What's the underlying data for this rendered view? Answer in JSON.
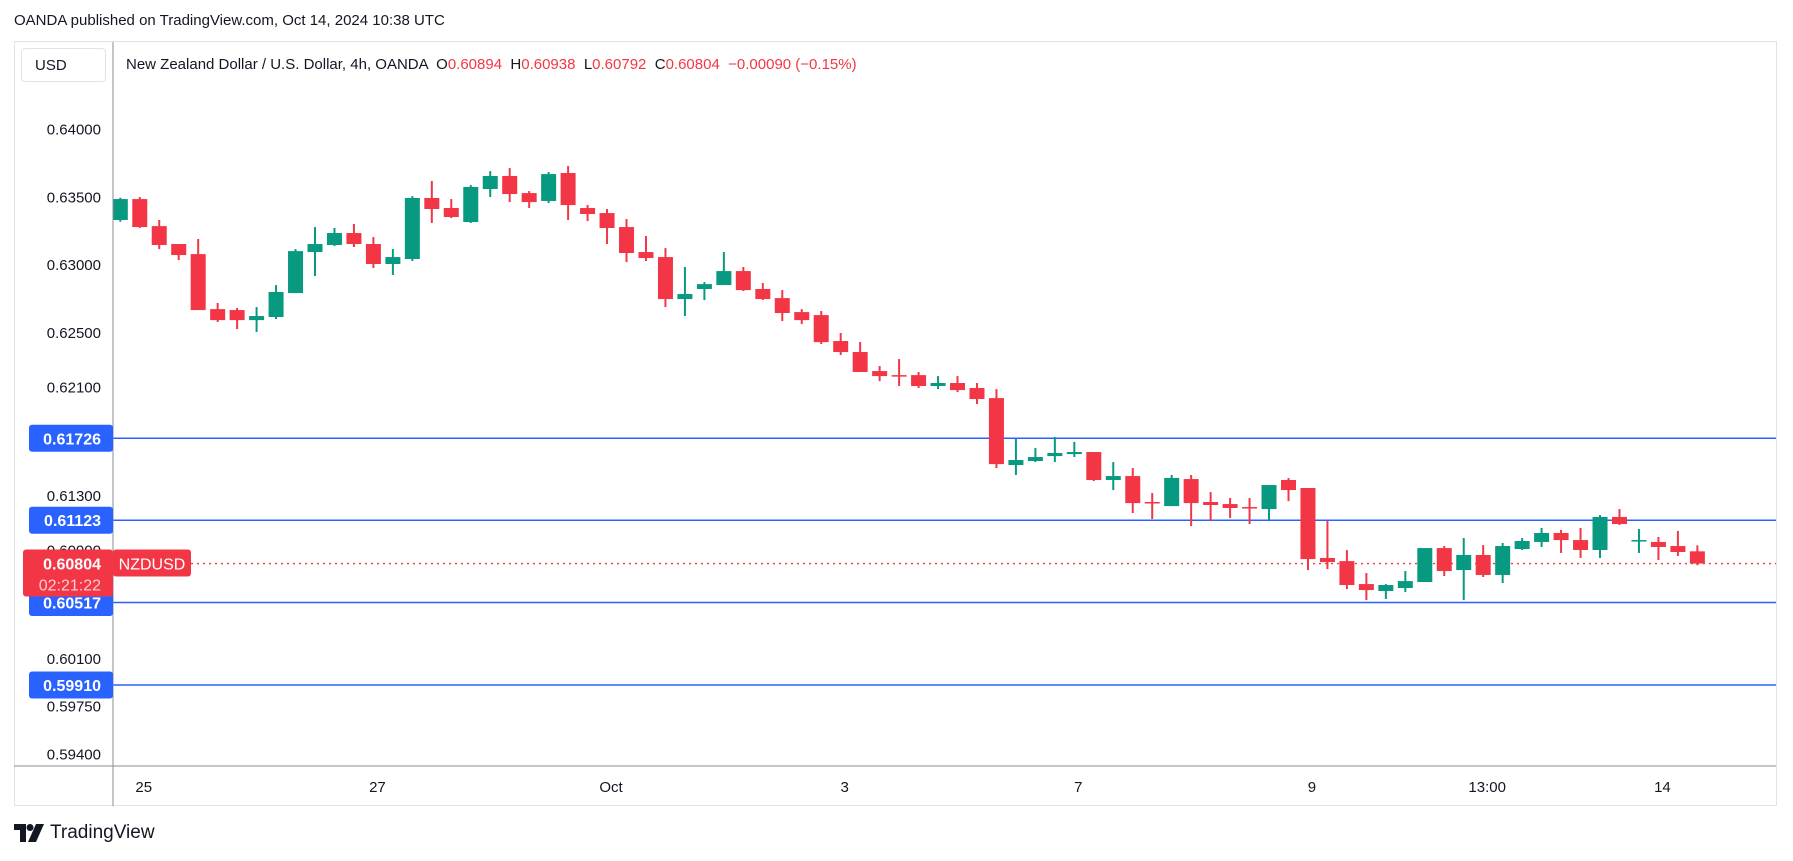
{
  "published": "OANDA published on TradingView.com, Oct 14, 2024 10:38 UTC",
  "currency_button": "USD",
  "legend": {
    "title": "New Zealand Dollar / U.S. Dollar, 4h, OANDA",
    "o_label": "O",
    "o": "0.60894",
    "h_label": "H",
    "h": "0.60938",
    "l_label": "L",
    "l": "0.60792",
    "c_label": "C",
    "c": "0.60804",
    "change": "−0.00090 (−0.15%)"
  },
  "colors": {
    "up": "#089981",
    "down": "#f23645",
    "level_line": "#2962ff",
    "price_tag": "#f23645"
  },
  "footer": {
    "logo_icon": "tradingview-logo-icon",
    "brand": "TradingView"
  },
  "chart_data": {
    "type": "candlestick",
    "symbol": "NZDUSD",
    "interval": "4h",
    "ylim": [
      0.5915,
      0.6425
    ],
    "y_ticks": [
      "0.64000",
      "0.63500",
      "0.63000",
      "0.62500",
      "0.62100",
      "0.61300",
      "0.60900",
      "0.60100",
      "0.59750",
      "0.59400"
    ],
    "x_ticks": [
      {
        "label": "25",
        "bar": 1
      },
      {
        "label": "27",
        "bar": 13
      },
      {
        "label": "Oct",
        "bar": 25
      },
      {
        "label": "3",
        "bar": 37
      },
      {
        "label": "7",
        "bar": 49
      },
      {
        "label": "9",
        "bar": 61
      },
      {
        "label": "13:00",
        "bar": 70
      },
      {
        "label": "14",
        "bar": 79
      }
    ],
    "horizontal_levels": [
      "0.61726",
      "0.61123",
      "0.60517",
      "0.59910"
    ],
    "last_price": {
      "value": "0.60804",
      "symbol": "NZDUSD",
      "countdown": "02:21:22"
    },
    "ohlc": [
      [
        0.63333,
        0.63497,
        0.6332,
        0.63487
      ],
      [
        0.63487,
        0.63502,
        0.63274,
        0.63281
      ],
      [
        0.63288,
        0.63333,
        0.63119,
        0.63149
      ],
      [
        0.63156,
        0.63156,
        0.63038,
        0.63075
      ],
      [
        0.63082,
        0.63193,
        0.6267,
        0.6267
      ],
      [
        0.62677,
        0.62722,
        0.62582,
        0.62596
      ],
      [
        0.6267,
        0.62685,
        0.6253,
        0.62596
      ],
      [
        0.62596,
        0.62692,
        0.62508,
        0.62626
      ],
      [
        0.62619,
        0.62854,
        0.62604,
        0.62803
      ],
      [
        0.62795,
        0.63119,
        0.62795,
        0.63104
      ],
      [
        0.63097,
        0.63281,
        0.6292,
        0.63156
      ],
      [
        0.63149,
        0.63274,
        0.63141,
        0.63237
      ],
      [
        0.63237,
        0.63303,
        0.63134,
        0.63156
      ],
      [
        0.63156,
        0.63207,
        0.62979,
        0.63009
      ],
      [
        0.63009,
        0.63119,
        0.62928,
        0.6306
      ],
      [
        0.63046,
        0.63509,
        0.63031,
        0.63495
      ],
      [
        0.63495,
        0.6362,
        0.63311,
        0.63414
      ],
      [
        0.63421,
        0.63487,
        0.63347,
        0.63355
      ],
      [
        0.63318,
        0.6359,
        0.63311,
        0.63576
      ],
      [
        0.63561,
        0.63693,
        0.63502,
        0.63657
      ],
      [
        0.63657,
        0.63715,
        0.63465,
        0.63524
      ],
      [
        0.63531,
        0.63546,
        0.63421,
        0.63465
      ],
      [
        0.63473,
        0.63686,
        0.63458,
        0.63671
      ],
      [
        0.63679,
        0.6373,
        0.63333,
        0.63443
      ],
      [
        0.63421,
        0.63443,
        0.63325,
        0.63377
      ],
      [
        0.63384,
        0.63414,
        0.63156,
        0.63274
      ],
      [
        0.63281,
        0.6334,
        0.63023,
        0.6309
      ],
      [
        0.63097,
        0.63215,
        0.63031,
        0.63053
      ],
      [
        0.6306,
        0.63126,
        0.62692,
        0.62751
      ],
      [
        0.62751,
        0.62987,
        0.62626,
        0.62788
      ],
      [
        0.62825,
        0.62876,
        0.62744,
        0.62861
      ],
      [
        0.62854,
        0.63097,
        0.62854,
        0.62957
      ],
      [
        0.62957,
        0.62987,
        0.6281,
        0.62817
      ],
      [
        0.62825,
        0.62869,
        0.62744,
        0.62751
      ],
      [
        0.62758,
        0.62817,
        0.62589,
        0.62648
      ],
      [
        0.62655,
        0.62677,
        0.62567,
        0.62596
      ],
      [
        0.62633,
        0.62663,
        0.6242,
        0.62434
      ],
      [
        0.62442,
        0.62501,
        0.62339,
        0.62361
      ],
      [
        0.62361,
        0.62435,
        0.62214,
        0.62214
      ],
      [
        0.62221,
        0.62258,
        0.62147,
        0.62184
      ],
      [
        0.62191,
        0.62309,
        0.62111,
        0.62184
      ],
      [
        0.62191,
        0.62214,
        0.62096,
        0.62111
      ],
      [
        0.62111,
        0.62184,
        0.62088,
        0.62133
      ],
      [
        0.62133,
        0.62184,
        0.62066,
        0.62081
      ],
      [
        0.62096,
        0.62133,
        0.61978,
        0.62015
      ],
      [
        0.62022,
        0.62088,
        0.61507,
        0.61536
      ],
      [
        0.61529,
        0.61721,
        0.61456,
        0.61566
      ],
      [
        0.61559,
        0.61654,
        0.61551,
        0.61588
      ],
      [
        0.61595,
        0.61735,
        0.61551,
        0.61618
      ],
      [
        0.6161,
        0.61699,
        0.61588,
        0.61625
      ],
      [
        0.61625,
        0.61625,
        0.61411,
        0.61419
      ],
      [
        0.61419,
        0.61551,
        0.61345,
        0.61448
      ],
      [
        0.61448,
        0.61507,
        0.61176,
        0.61249
      ],
      [
        0.61257,
        0.61323,
        0.61132,
        0.61249
      ],
      [
        0.61227,
        0.61456,
        0.61227,
        0.61434
      ],
      [
        0.61426,
        0.61456,
        0.6108,
        0.61249
      ],
      [
        0.61257,
        0.6133,
        0.61117,
        0.61235
      ],
      [
        0.61242,
        0.61286,
        0.61139,
        0.61213
      ],
      [
        0.6122,
        0.61286,
        0.61095,
        0.61213
      ],
      [
        0.61205,
        0.61382,
        0.61124,
        0.61382
      ],
      [
        0.61419,
        0.61434,
        0.61264,
        0.61345
      ],
      [
        0.6136,
        0.6136,
        0.60756,
        0.60837
      ],
      [
        0.60845,
        0.61117,
        0.60764,
        0.60815
      ],
      [
        0.60822,
        0.60903,
        0.60616,
        0.60646
      ],
      [
        0.60653,
        0.60734,
        0.60535,
        0.60609
      ],
      [
        0.60602,
        0.60653,
        0.60543,
        0.60646
      ],
      [
        0.60624,
        0.60749,
        0.60594,
        0.60675
      ],
      [
        0.60668,
        0.60918,
        0.60668,
        0.60918
      ],
      [
        0.60918,
        0.60933,
        0.60712,
        0.60749
      ],
      [
        0.60756,
        0.60992,
        0.60536,
        0.60867
      ],
      [
        0.60867,
        0.6094,
        0.60705,
        0.6072
      ],
      [
        0.6072,
        0.60955,
        0.60661,
        0.60933
      ],
      [
        0.60911,
        0.60992,
        0.60904,
        0.6097
      ],
      [
        0.60963,
        0.61066,
        0.60926,
        0.61029
      ],
      [
        0.61029,
        0.61051,
        0.60882,
        0.60977
      ],
      [
        0.60977,
        0.61066,
        0.60845,
        0.60904
      ],
      [
        0.60904,
        0.61161,
        0.60845,
        0.61147
      ],
      [
        0.61147,
        0.61205,
        0.61088,
        0.61095
      ],
      [
        0.6097,
        0.61058,
        0.60882,
        0.60977
      ],
      [
        0.60963,
        0.61,
        0.6083,
        0.60926
      ],
      [
        0.60933,
        0.61044,
        0.6086,
        0.60889
      ],
      [
        0.60894,
        0.60938,
        0.60792,
        0.60804
      ]
    ]
  }
}
